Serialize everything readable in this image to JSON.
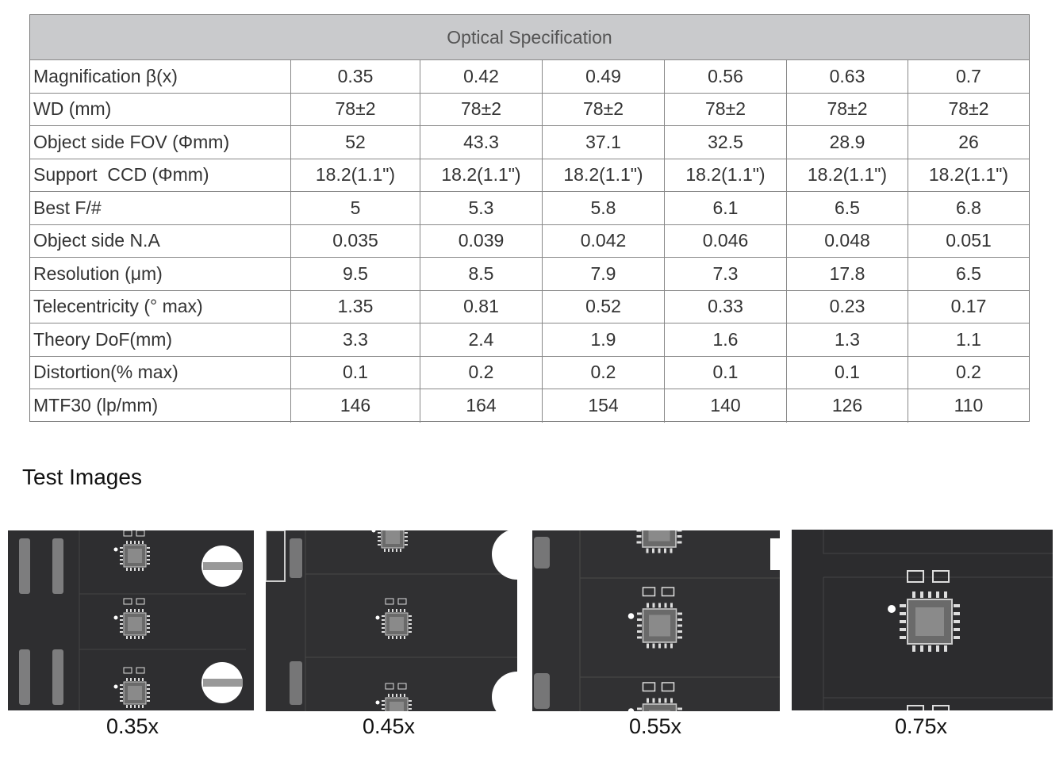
{
  "table": {
    "title": "Optical Specification",
    "rows": [
      [
        "Magnification β(x)",
        "0.35",
        "0.42",
        "0.49",
        "0.56",
        "0.63",
        "0.7"
      ],
      [
        "WD (mm)",
        "78±2",
        "78±2",
        "78±2",
        "78±2",
        "78±2",
        "78±2"
      ],
      [
        "Object side FOV (Φmm)",
        "52",
        "43.3",
        "37.1",
        "32.5",
        "28.9",
        "26"
      ],
      [
        "Support  CCD (Φmm)",
        "18.2(1.1\")",
        "18.2(1.1\")",
        "18.2(1.1\")",
        "18.2(1.1\")",
        "18.2(1.1\")",
        "18.2(1.1\")"
      ],
      [
        "Best F/#",
        "5",
        "5.3",
        "5.8",
        "6.1",
        "6.5",
        "6.8"
      ],
      [
        "Object side N.A",
        "0.035",
        "0.039",
        "0.042",
        "0.046",
        "0.048",
        "0.051"
      ],
      [
        "Resolution (μm)",
        "9.5",
        "8.5",
        "7.9",
        "7.3",
        "17.8",
        "6.5"
      ],
      [
        "Telecentricity (° max)",
        "1.35",
        "0.81",
        "0.52",
        "0.33",
        "0.23",
        "0.17"
      ],
      [
        "Theory DoF(mm)",
        "3.3",
        "2.4",
        "1.9",
        "1.6",
        "1.3",
        "1.1"
      ],
      [
        "Distortion(% max)",
        "0.1",
        "0.2",
        "0.2",
        "0.1",
        "0.1",
        "0.2"
      ],
      [
        "MTF30 (lp/mm)",
        "146",
        "164",
        "154",
        "140",
        "126",
        "110"
      ]
    ]
  },
  "section_title": "Test Images",
  "images": [
    {
      "caption": "0.35x"
    },
    {
      "caption": "0.45x"
    },
    {
      "caption": "0.55x"
    },
    {
      "caption": "0.75x"
    }
  ]
}
